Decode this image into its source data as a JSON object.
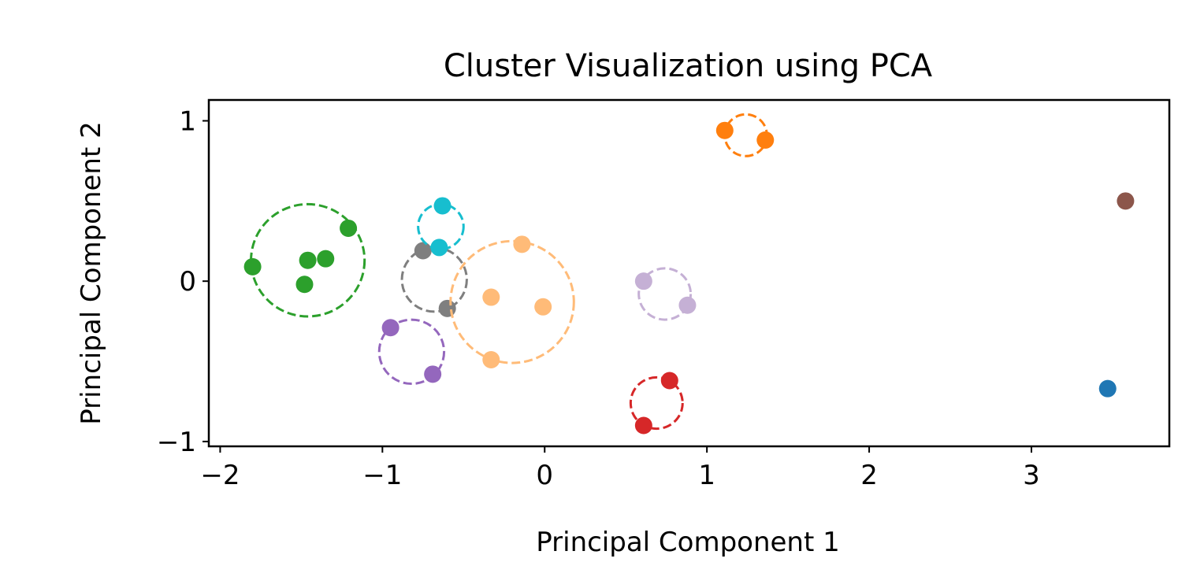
{
  "chart_data": {
    "type": "scatter",
    "title": "Cluster Visualization using PCA",
    "xlabel": "Principal Component 1",
    "ylabel": "Principal Component 2",
    "xlim": [
      -2.07,
      3.85
    ],
    "ylim": [
      -1.03,
      1.13
    ],
    "xticks": [
      -2,
      -1,
      0,
      1,
      2,
      3
    ],
    "xtick_labels": [
      "−2",
      "−1",
      "0",
      "1",
      "2",
      "3"
    ],
    "yticks": [
      -1,
      0,
      1
    ],
    "ytick_labels": [
      "−1",
      "0",
      "1"
    ],
    "grid": false,
    "legend": "none",
    "series": [
      {
        "color": "#1f77b4",
        "points": [
          [
            3.47,
            -0.67
          ]
        ],
        "circle": null
      },
      {
        "color": "#ff7f0e",
        "points": [
          [
            1.11,
            0.94
          ],
          [
            1.36,
            0.88
          ]
        ],
        "circle": {
          "center": [
            1.24,
            0.91
          ],
          "radius": 0.13
        }
      },
      {
        "color": "#2ca02c",
        "points": [
          [
            -1.8,
            0.09
          ],
          [
            -1.48,
            -0.02
          ],
          [
            -1.46,
            0.13
          ],
          [
            -1.35,
            0.14
          ],
          [
            -1.21,
            0.33
          ]
        ],
        "circle": {
          "center": [
            -1.46,
            0.13
          ],
          "radius": 0.35
        }
      },
      {
        "color": "#d62728",
        "points": [
          [
            0.77,
            -0.62
          ],
          [
            0.61,
            -0.9
          ]
        ],
        "circle": {
          "center": [
            0.69,
            -0.76
          ],
          "radius": 0.16
        }
      },
      {
        "color": "#9467bd",
        "points": [
          [
            -0.95,
            -0.29
          ],
          [
            -0.69,
            -0.58
          ]
        ],
        "circle": {
          "center": [
            -0.82,
            -0.44
          ],
          "radius": 0.2
        }
      },
      {
        "color": "#8c564b",
        "points": [
          [
            3.58,
            0.5
          ]
        ],
        "circle": null
      },
      {
        "color": "#7f7f7f",
        "points": [
          [
            -0.75,
            0.19
          ],
          [
            -0.6,
            -0.17
          ]
        ],
        "circle": {
          "center": [
            -0.68,
            0.01
          ],
          "radius": 0.2
        }
      },
      {
        "color": "#17becf",
        "points": [
          [
            -0.63,
            0.47
          ],
          [
            -0.65,
            0.21
          ]
        ],
        "circle": {
          "center": [
            -0.64,
            0.34
          ],
          "radius": 0.14
        }
      },
      {
        "color": "#ffbb78",
        "points": [
          [
            -0.14,
            0.23
          ],
          [
            -0.33,
            -0.1
          ],
          [
            -0.01,
            -0.16
          ],
          [
            -0.33,
            -0.49
          ]
        ],
        "circle": {
          "center": [
            -0.2,
            -0.13
          ],
          "radius": 0.38
        }
      },
      {
        "color": "#c5b0d5",
        "points": [
          [
            0.61,
            0.0
          ],
          [
            0.88,
            -0.15
          ]
        ],
        "circle": {
          "center": [
            0.74,
            -0.08
          ],
          "radius": 0.16
        }
      }
    ]
  }
}
